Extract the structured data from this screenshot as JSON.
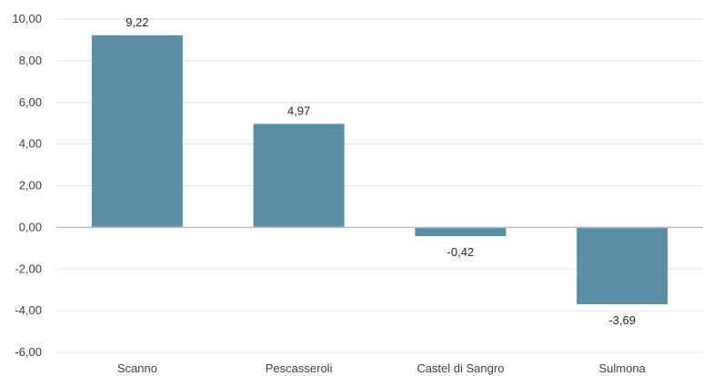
{
  "chart_data": {
    "type": "bar",
    "categories": [
      "Scanno",
      "Pescasseroli",
      "Castel di Sangro",
      "Sulmona"
    ],
    "values": [
      9.22,
      4.97,
      -0.42,
      -3.69
    ],
    "data_labels": [
      "9,22",
      "4,97",
      "-0,42",
      "-3,69"
    ],
    "ylim": [
      -6,
      10
    ],
    "yticks": [
      10,
      8,
      6,
      4,
      2,
      0,
      -2,
      -4,
      -6
    ],
    "ytick_labels": [
      "10,00",
      "8,00",
      "6,00",
      "4,00",
      "2,00",
      "0,00",
      "-2,00",
      "-4,00",
      "-6,00"
    ],
    "grid": true,
    "legend": "none",
    "bar_color": "#5B8FA8",
    "title": "",
    "xlabel": "",
    "ylabel": ""
  }
}
